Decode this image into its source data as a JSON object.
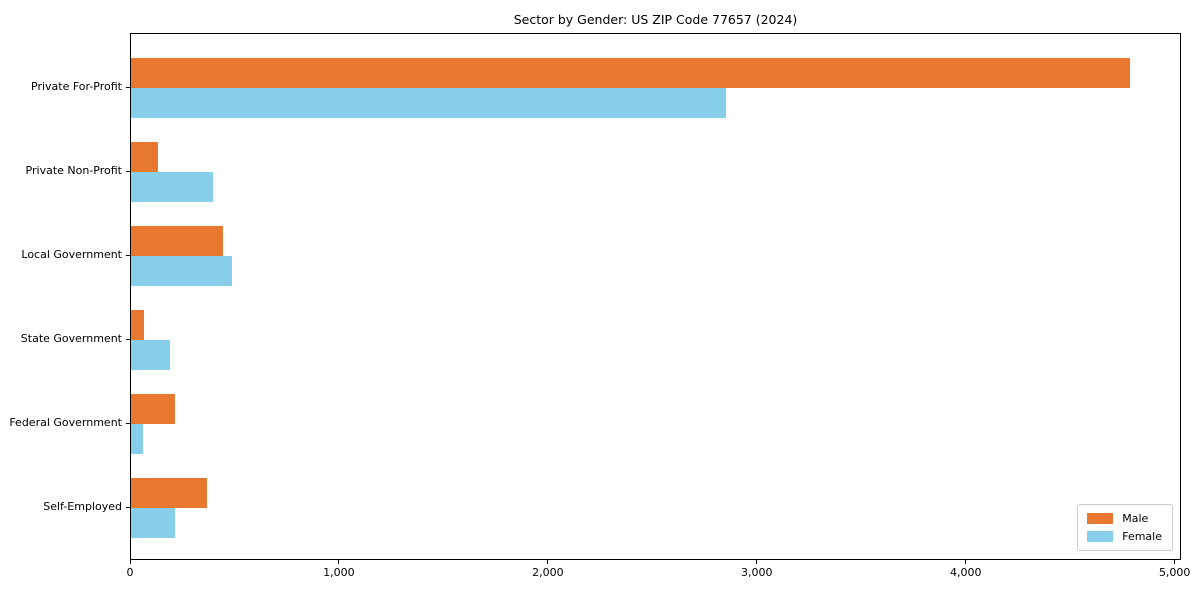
{
  "title": "Sector by Gender: US ZIP Code 77657 (2024)",
  "colors": {
    "male": "#E8772F",
    "female": "#87CEEB",
    "spine": "#000000",
    "legend_border": "#CCCCCC",
    "background": "#FFFFFF",
    "text": "#000000"
  },
  "chart_data": {
    "type": "bar",
    "orientation": "horizontal",
    "title": "Sector by Gender: US ZIP Code 77657 (2024)",
    "categories": [
      "Private For-Profit",
      "Private Non-Profit",
      "Local Government",
      "State Government",
      "Federal Government",
      "Self-Employed"
    ],
    "series": [
      {
        "name": "Male",
        "color": "#E8772F",
        "values": [
          4780,
          130,
          440,
          62,
          210,
          365
        ]
      },
      {
        "name": "Female",
        "color": "#87CEEB",
        "values": [
          2845,
          390,
          483,
          187,
          57,
          212
        ]
      }
    ],
    "xlabel": "",
    "ylabel": "",
    "xlim": [
      0,
      5030
    ],
    "xticks": [
      0,
      1000,
      2000,
      3000,
      4000,
      5000
    ],
    "xtick_labels": [
      "0",
      "1,000",
      "2,000",
      "3,000",
      "4,000",
      "5,000"
    ],
    "grid": false,
    "legend": {
      "position": "lower right",
      "entries": [
        "Male",
        "Female"
      ]
    }
  }
}
